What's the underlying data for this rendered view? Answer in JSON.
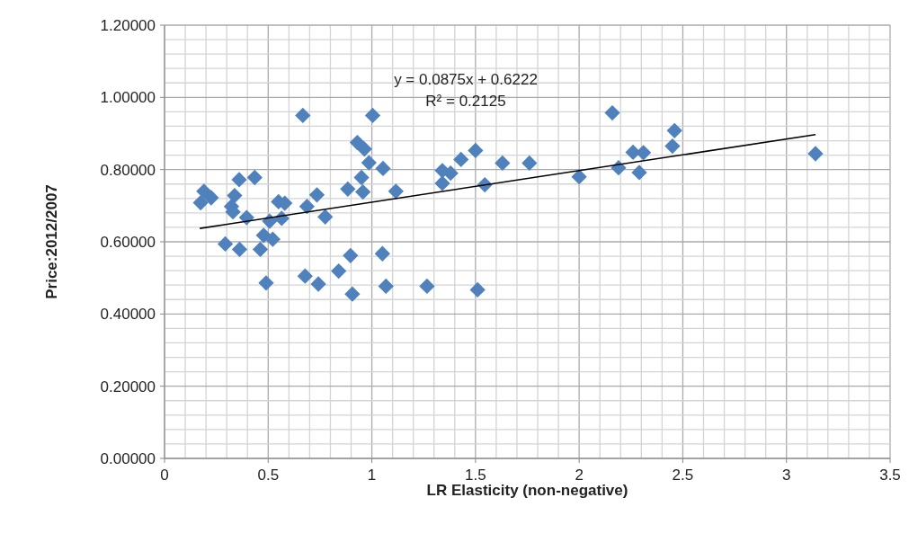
{
  "chart_data": {
    "type": "scatter",
    "xlabel": "LR Elasticity (non-negative)",
    "ylabel": "Price:2012/2007",
    "xlim": [
      0,
      3.5
    ],
    "ylim": [
      0,
      1.2
    ],
    "xticks": [
      0,
      {
        "value": 0.1,
        "label": null
      },
      {
        "value": 0.2,
        "label": null
      },
      {
        "value": 0.3,
        "label": null
      },
      {
        "value": 0.4,
        "label": null
      },
      0.5,
      {
        "value": 0.6,
        "label": null
      },
      {
        "value": 0.7,
        "label": null
      },
      {
        "value": 0.8,
        "label": null
      },
      {
        "value": 0.9,
        "label": null
      },
      1,
      {
        "value": 1.1,
        "label": null
      },
      {
        "value": 1.2,
        "label": null
      },
      {
        "value": 1.3,
        "label": null
      },
      {
        "value": 1.4,
        "label": null
      },
      1.5,
      {
        "value": 1.6,
        "label": null
      },
      {
        "value": 1.7,
        "label": null
      },
      {
        "value": 1.8,
        "label": null
      },
      {
        "value": 1.9,
        "label": null
      },
      2,
      {
        "value": 2.1,
        "label": null
      },
      {
        "value": 2.2,
        "label": null
      },
      {
        "value": 2.3,
        "label": null
      },
      {
        "value": 2.4,
        "label": null
      },
      2.5,
      {
        "value": 2.6,
        "label": null
      },
      {
        "value": 2.7,
        "label": null
      },
      {
        "value": 2.8,
        "label": null
      },
      {
        "value": 2.9,
        "label": null
      },
      3,
      {
        "value": 3.1,
        "label": null
      },
      {
        "value": 3.2,
        "label": null
      },
      {
        "value": 3.3,
        "label": null
      },
      {
        "value": 3.4,
        "label": null
      },
      3.5
    ],
    "yticks": [
      {
        "value": 0,
        "label": "0.00000"
      },
      {
        "value": 0.04,
        "label": null
      },
      {
        "value": 0.08,
        "label": null
      },
      {
        "value": 0.12,
        "label": null
      },
      {
        "value": 0.16,
        "label": null
      },
      {
        "value": 0.2,
        "label": "0.20000"
      },
      {
        "value": 0.24,
        "label": null
      },
      {
        "value": 0.28,
        "label": null
      },
      {
        "value": 0.32,
        "label": null
      },
      {
        "value": 0.36,
        "label": null
      },
      {
        "value": 0.4,
        "label": "0.40000"
      },
      {
        "value": 0.44,
        "label": null
      },
      {
        "value": 0.48,
        "label": null
      },
      {
        "value": 0.52,
        "label": null
      },
      {
        "value": 0.56,
        "label": null
      },
      {
        "value": 0.6,
        "label": "0.60000"
      },
      {
        "value": 0.64,
        "label": null
      },
      {
        "value": 0.68,
        "label": null
      },
      {
        "value": 0.72,
        "label": null
      },
      {
        "value": 0.76,
        "label": null
      },
      {
        "value": 0.8,
        "label": "0.80000"
      },
      {
        "value": 0.84,
        "label": null
      },
      {
        "value": 0.88,
        "label": null
      },
      {
        "value": 0.92,
        "label": null
      },
      {
        "value": 0.96,
        "label": null
      },
      {
        "value": 1,
        "label": "1.00000"
      },
      {
        "value": 1.04,
        "label": null
      },
      {
        "value": 1.08,
        "label": null
      },
      {
        "value": 1.12,
        "label": null
      },
      {
        "value": 1.16,
        "label": null
      },
      {
        "value": 1.2,
        "label": "1.20000"
      }
    ],
    "grid": true,
    "annotations": [
      "y = 0.0875x + 0.6222",
      "R² = 0.2125"
    ],
    "series": [
      {
        "color": "#4f81bd",
        "marker": "diamond",
        "x": [
          0.667,
          1.004,
          0.93,
          0.964,
          0.986,
          1.054,
          0.36,
          0.435,
          0.95,
          0.19,
          0.884,
          0.957,
          1.116,
          0.174,
          0.225,
          0.338,
          0.323,
          0.33,
          0.55,
          0.58,
          0.565,
          0.687,
          0.735,
          0.775,
          0.396,
          0.507,
          0.478,
          0.522,
          0.293,
          0.362,
          0.462,
          0.49,
          0.678,
          0.742,
          0.84,
          0.897,
          0.906,
          1.051,
          1.068,
          1.266,
          2.16,
          2.46,
          2.45,
          2.26,
          2.31,
          2.19,
          2.29,
          2.0,
          1.34,
          1.38,
          1.34,
          1.43,
          1.5,
          1.545,
          1.63,
          1.76,
          1.51,
          3.14
        ],
        "values": [
          0.95,
          0.95,
          0.875,
          0.857,
          0.819,
          0.803,
          0.772,
          0.778,
          0.778,
          0.74,
          0.746,
          0.738,
          0.74,
          0.708,
          0.722,
          0.728,
          0.698,
          0.683,
          0.711,
          0.707,
          0.665,
          0.698,
          0.73,
          0.669,
          0.667,
          0.657,
          0.618,
          0.607,
          0.594,
          0.579,
          0.579,
          0.486,
          0.505,
          0.483,
          0.519,
          0.562,
          0.455,
          0.567,
          0.477,
          0.477,
          0.957,
          0.908,
          0.865,
          0.848,
          0.847,
          0.805,
          0.792,
          0.78,
          0.797,
          0.79,
          0.762,
          0.828,
          0.853,
          0.758,
          0.818,
          0.818,
          0.467,
          0.844
        ]
      },
      {
        "type": "line",
        "color": "#000000",
        "marker": "none",
        "line_style": "solid",
        "x": [
          0.17,
          3.14
        ],
        "values": [
          0.637,
          0.897
        ]
      }
    ]
  }
}
